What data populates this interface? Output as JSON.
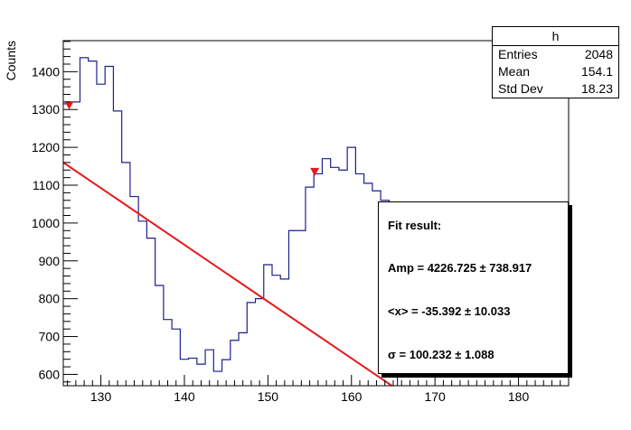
{
  "chart_data": {
    "type": "histogram",
    "ylabel": "Counts",
    "xlim": [
      125.5,
      186
    ],
    "ylim": [
      570,
      1482
    ],
    "x_ticks": [
      130,
      140,
      150,
      160,
      170,
      180
    ],
    "y_ticks": [
      600,
      700,
      800,
      900,
      1000,
      1100,
      1200,
      1300,
      1400
    ],
    "bin_edges": [
      125.5,
      126.5,
      127.5,
      128.5,
      129.5,
      130.5,
      131.5,
      132.5,
      133.5,
      134.5,
      135.5,
      136.5,
      137.5,
      138.5,
      139.5,
      140.5,
      141.5,
      142.5,
      143.5,
      144.5,
      145.5,
      146.5,
      147.5,
      148.5,
      149.5,
      150.5,
      151.5,
      152.5,
      153.5,
      154.5,
      155.5,
      156.5,
      157.5,
      158.5,
      159.5,
      160.5,
      161.5,
      162.5,
      163.5,
      164.5,
      165.5
    ],
    "counts": [
      1315,
      1320,
      1437,
      1428,
      1367,
      1414,
      1296,
      1160,
      1070,
      1005,
      960,
      835,
      745,
      720,
      640,
      643,
      627,
      665,
      608,
      639,
      690,
      710,
      790,
      800,
      890,
      862,
      852,
      980,
      980,
      1095,
      1130,
      1170,
      1147,
      1140,
      1200,
      1130,
      1105,
      1085,
      1060,
      1045
    ],
    "fit_line": {
      "x": [
        125.5,
        165.5
      ],
      "y": [
        1160,
        560
      ]
    },
    "markers": [
      {
        "x": 126.2,
        "y": 1312
      },
      {
        "x": 155.6,
        "y": 1136
      }
    ],
    "colors": {
      "histogram": "#1f1f8f",
      "fit": "#e41a1c",
      "marker": "#e41a1c",
      "axis": "#000000"
    },
    "stats": {
      "title": "h",
      "rows": [
        {
          "label": "Entries",
          "value": "2048"
        },
        {
          "label": "Mean",
          "value": "154.1"
        },
        {
          "label": "Std Dev",
          "value": "18.23"
        }
      ]
    },
    "fit_result": {
      "title": "Fit result:",
      "amp": "Amp = 4226.725 ± 738.917",
      "mean": "<x> = -35.392 ± 10.033",
      "sigma": "σ = 100.232 ± 1.088"
    }
  }
}
